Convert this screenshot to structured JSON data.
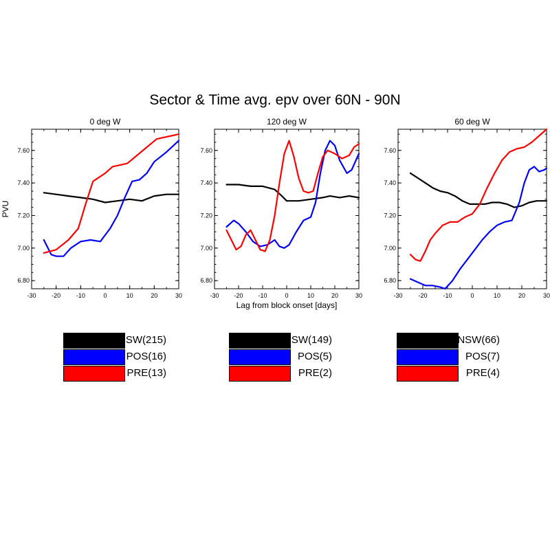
{
  "title": "Sector & Time avg. epv over 60N - 90N",
  "colors": {
    "NSW": "#000000",
    "POS": "#0000ff",
    "PRE": "#ff0000"
  },
  "chart_data": [
    {
      "type": "line",
      "title": "0 deg W",
      "ylabel": "PVU",
      "xlabel": "",
      "xlim": [
        -30,
        30
      ],
      "ylim": [
        6.75,
        7.73
      ],
      "xticks": [
        "-30",
        "-20",
        "-10",
        "0",
        "10",
        "20",
        "30"
      ],
      "yticks": [
        "6.80",
        "7.00",
        "7.20",
        "7.40",
        "7.60"
      ],
      "series": [
        {
          "name": "NSW(215)",
          "key": "NSW",
          "points": [
            [
              -25,
              7.34
            ],
            [
              -20,
              7.33
            ],
            [
              -15,
              7.32
            ],
            [
              -10,
              7.31
            ],
            [
              -5,
              7.3
            ],
            [
              0,
              7.28
            ],
            [
              5,
              7.29
            ],
            [
              10,
              7.3
            ],
            [
              15,
              7.29
            ],
            [
              20,
              7.32
            ],
            [
              25,
              7.33
            ],
            [
              30,
              7.33
            ]
          ]
        },
        {
          "name": "POS(16)",
          "key": "POS",
          "points": [
            [
              -25,
              7.05
            ],
            [
              -22,
              6.96
            ],
            [
              -20,
              6.95
            ],
            [
              -17,
              6.95
            ],
            [
              -14,
              7.0
            ],
            [
              -10,
              7.04
            ],
            [
              -6,
              7.05
            ],
            [
              -2,
              7.04
            ],
            [
              2,
              7.12
            ],
            [
              5,
              7.2
            ],
            [
              8,
              7.31
            ],
            [
              11,
              7.41
            ],
            [
              14,
              7.42
            ],
            [
              17,
              7.46
            ],
            [
              20,
              7.53
            ],
            [
              25,
              7.59
            ],
            [
              30,
              7.66
            ]
          ]
        },
        {
          "name": "PRE(13)",
          "key": "PRE",
          "points": [
            [
              -25,
              6.97
            ],
            [
              -20,
              6.99
            ],
            [
              -15,
              7.05
            ],
            [
              -11,
              7.12
            ],
            [
              -8,
              7.27
            ],
            [
              -5,
              7.41
            ],
            [
              -2,
              7.44
            ],
            [
              0,
              7.46
            ],
            [
              3,
              7.5
            ],
            [
              6,
              7.51
            ],
            [
              9,
              7.52
            ],
            [
              13,
              7.57
            ],
            [
              17,
              7.62
            ],
            [
              21,
              7.67
            ],
            [
              24,
              7.68
            ],
            [
              27,
              7.69
            ],
            [
              30,
              7.7
            ]
          ]
        }
      ],
      "legend": [
        {
          "label": "NSW(215)",
          "key": "NSW"
        },
        {
          "label": "POS(16)",
          "key": "POS"
        },
        {
          "label": "PRE(13)",
          "key": "PRE"
        }
      ]
    },
    {
      "type": "line",
      "title": "120 deg W",
      "ylabel": "",
      "xlabel": "Lag from block onset [days]",
      "xlim": [
        -30,
        30
      ],
      "ylim": [
        6.75,
        7.73
      ],
      "xticks": [
        "-30",
        "-20",
        "-10",
        "0",
        "10",
        "20",
        "30"
      ],
      "yticks": [
        "6.80",
        "7.00",
        "7.20",
        "7.40",
        "7.60"
      ],
      "series": [
        {
          "name": "NSW(149)",
          "key": "NSW",
          "points": [
            [
              -25,
              7.39
            ],
            [
              -20,
              7.39
            ],
            [
              -15,
              7.38
            ],
            [
              -10,
              7.38
            ],
            [
              -5,
              7.36
            ],
            [
              -2,
              7.32
            ],
            [
              0,
              7.29
            ],
            [
              5,
              7.29
            ],
            [
              10,
              7.3
            ],
            [
              15,
              7.31
            ],
            [
              18,
              7.32
            ],
            [
              22,
              7.31
            ],
            [
              26,
              7.32
            ],
            [
              30,
              7.31
            ]
          ]
        },
        {
          "name": "POS(5)",
          "key": "POS",
          "points": [
            [
              -25,
              7.13
            ],
            [
              -22,
              7.17
            ],
            [
              -20,
              7.15
            ],
            [
              -17,
              7.1
            ],
            [
              -14,
              7.04
            ],
            [
              -11,
              7.01
            ],
            [
              -8,
              7.02
            ],
            [
              -5,
              7.05
            ],
            [
              -3,
              7.01
            ],
            [
              -1,
              7.0
            ],
            [
              1,
              7.02
            ],
            [
              4,
              7.1
            ],
            [
              7,
              7.17
            ],
            [
              10,
              7.19
            ],
            [
              12,
              7.28
            ],
            [
              14,
              7.46
            ],
            [
              16,
              7.6
            ],
            [
              18,
              7.66
            ],
            [
              20,
              7.63
            ],
            [
              22,
              7.54
            ],
            [
              25,
              7.46
            ],
            [
              27,
              7.48
            ],
            [
              30,
              7.58
            ]
          ]
        },
        {
          "name": "PRE(2)",
          "key": "PRE",
          "points": [
            [
              -25,
              7.11
            ],
            [
              -23,
              7.05
            ],
            [
              -21,
              6.99
            ],
            [
              -19,
              7.01
            ],
            [
              -17,
              7.08
            ],
            [
              -15,
              7.11
            ],
            [
              -13,
              7.05
            ],
            [
              -11,
              6.99
            ],
            [
              -9,
              6.98
            ],
            [
              -7,
              7.05
            ],
            [
              -5,
              7.2
            ],
            [
              -3,
              7.4
            ],
            [
              -1,
              7.58
            ],
            [
              1,
              7.66
            ],
            [
              3,
              7.56
            ],
            [
              5,
              7.43
            ],
            [
              7,
              7.35
            ],
            [
              9,
              7.34
            ],
            [
              11,
              7.35
            ],
            [
              13,
              7.46
            ],
            [
              15,
              7.56
            ],
            [
              17,
              7.6
            ],
            [
              20,
              7.58
            ],
            [
              23,
              7.55
            ],
            [
              26,
              7.57
            ],
            [
              28,
              7.62
            ],
            [
              30,
              7.64
            ]
          ]
        }
      ],
      "legend": [
        {
          "label": "NSW(149)",
          "key": "NSW"
        },
        {
          "label": "POS(5)",
          "key": "POS"
        },
        {
          "label": "PRE(2)",
          "key": "PRE"
        }
      ]
    },
    {
      "type": "line",
      "title": "60 deg W",
      "ylabel": "",
      "xlabel": "",
      "xlim": [
        -30,
        30
      ],
      "ylim": [
        6.75,
        7.73
      ],
      "xticks": [
        "-30",
        "-20",
        "-10",
        "0",
        "10",
        "20",
        "30"
      ],
      "yticks": [
        "6.80",
        "7.00",
        "7.20",
        "7.40",
        "7.60"
      ],
      "series": [
        {
          "name": "NSW(66)",
          "key": "NSW",
          "points": [
            [
              -25,
              7.46
            ],
            [
              -22,
              7.43
            ],
            [
              -19,
              7.4
            ],
            [
              -16,
              7.37
            ],
            [
              -13,
              7.35
            ],
            [
              -10,
              7.34
            ],
            [
              -7,
              7.32
            ],
            [
              -4,
              7.29
            ],
            [
              -1,
              7.27
            ],
            [
              2,
              7.27
            ],
            [
              5,
              7.27
            ],
            [
              8,
              7.28
            ],
            [
              11,
              7.28
            ],
            [
              14,
              7.27
            ],
            [
              17,
              7.25
            ],
            [
              20,
              7.26
            ],
            [
              23,
              7.28
            ],
            [
              26,
              7.29
            ],
            [
              30,
              7.29
            ]
          ]
        },
        {
          "name": "POS(7)",
          "key": "POS",
          "points": [
            [
              -25,
              6.81
            ],
            [
              -22,
              6.79
            ],
            [
              -19,
              6.77
            ],
            [
              -16,
              6.77
            ],
            [
              -13,
              6.76
            ],
            [
              -11,
              6.75
            ],
            [
              -8,
              6.8
            ],
            [
              -5,
              6.87
            ],
            [
              -2,
              6.93
            ],
            [
              1,
              6.99
            ],
            [
              4,
              7.05
            ],
            [
              7,
              7.1
            ],
            [
              10,
              7.14
            ],
            [
              13,
              7.16
            ],
            [
              16,
              7.17
            ],
            [
              19,
              7.28
            ],
            [
              21,
              7.4
            ],
            [
              23,
              7.48
            ],
            [
              25,
              7.5
            ],
            [
              27,
              7.47
            ],
            [
              29,
              7.48
            ],
            [
              30,
              7.49
            ]
          ]
        },
        {
          "name": "PRE(4)",
          "key": "PRE",
          "points": [
            [
              -25,
              6.96
            ],
            [
              -23,
              6.93
            ],
            [
              -21,
              6.92
            ],
            [
              -19,
              6.98
            ],
            [
              -17,
              7.05
            ],
            [
              -15,
              7.09
            ],
            [
              -12,
              7.14
            ],
            [
              -9,
              7.16
            ],
            [
              -6,
              7.16
            ],
            [
              -3,
              7.19
            ],
            [
              0,
              7.21
            ],
            [
              3,
              7.27
            ],
            [
              6,
              7.37
            ],
            [
              9,
              7.46
            ],
            [
              12,
              7.54
            ],
            [
              15,
              7.59
            ],
            [
              18,
              7.61
            ],
            [
              21,
              7.62
            ],
            [
              24,
              7.65
            ],
            [
              27,
              7.69
            ],
            [
              30,
              7.73
            ]
          ]
        }
      ],
      "legend": [
        {
          "label": "NSW(66)",
          "key": "NSW"
        },
        {
          "label": "POS(7)",
          "key": "POS"
        },
        {
          "label": "PRE(4)",
          "key": "PRE"
        }
      ]
    }
  ]
}
